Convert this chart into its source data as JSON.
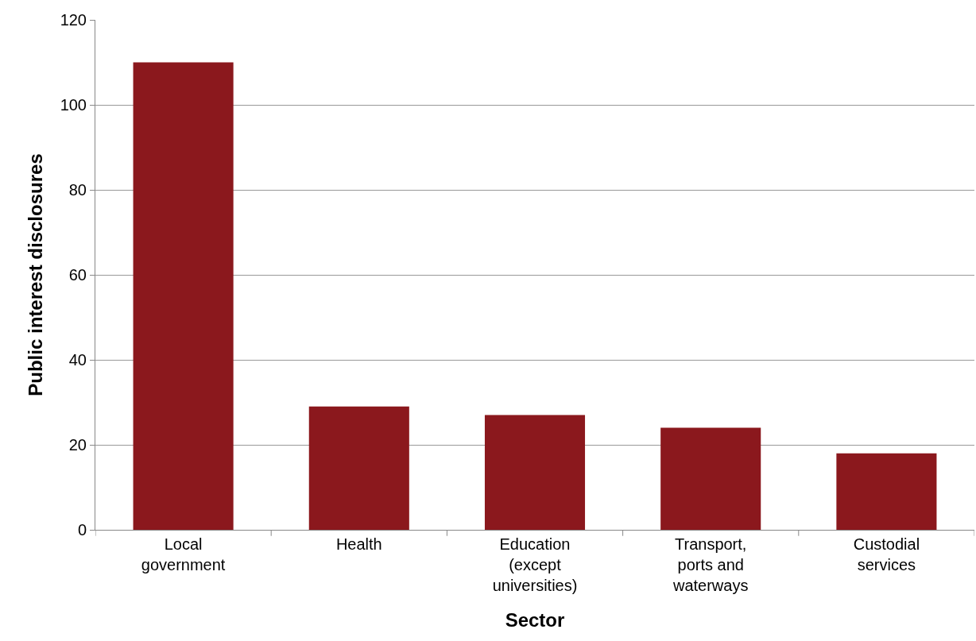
{
  "chart_data": {
    "type": "bar",
    "xlabel": "Sector",
    "ylabel": "Public interest disclosures",
    "categories": [
      "Local government",
      "Health",
      "Education (except universities)",
      "Transport, ports and waterways",
      "Custodial services"
    ],
    "values": [
      110,
      29,
      27,
      24,
      18
    ],
    "color": "#8b181d",
    "ylim": [
      0,
      120
    ],
    "yticks": [
      0,
      20,
      40,
      60,
      80,
      100,
      120
    ],
    "grid": "y"
  }
}
